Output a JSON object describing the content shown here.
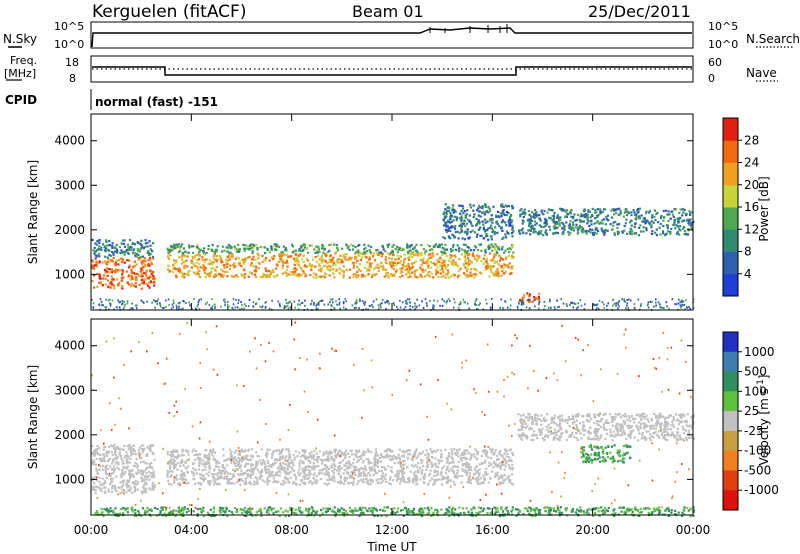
{
  "header": {
    "station": "Kerguelen (fitACF)",
    "beam": "Beam 01",
    "date": "25/Dec/2011"
  },
  "top_panels": {
    "nsky_label": "N.Sky",
    "nsky_ticks": [
      "10^5",
      "10^0"
    ],
    "nsearch_label": "N.Search",
    "nsearch_ticks": [
      "10^5",
      "10^0"
    ],
    "freq_label_1": "Freq.",
    "freq_label_2": "[MHz]",
    "freq_ticks": [
      "18",
      "8"
    ],
    "nave_label": "Nave",
    "nave_ticks": [
      "60",
      "0"
    ],
    "cpid_label": "CPID",
    "cpid_text": "normal (fast) -151"
  },
  "colors": {
    "power_scale": [
      "#1f3fd8",
      "#2f5fb0",
      "#2f8a70",
      "#4fa84f",
      "#c8d23a",
      "#f0a020",
      "#f06a10",
      "#e02010"
    ],
    "velocity_scale": [
      "#2030c0",
      "#3f7fb0",
      "#2f8f5f",
      "#60c040",
      "#c0c0c0",
      "#c8a040",
      "#f08020",
      "#e04010",
      "#e01010"
    ],
    "gray_scatter": "#c0c0c0"
  },
  "chart_data": [
    {
      "type": "heatmap",
      "name": "power",
      "ylabel": "Slant Range [km]",
      "yticks": [
        "1000",
        "2000",
        "3000",
        "4000"
      ],
      "ylim": [
        200,
        4600
      ],
      "colorbar_label": "Power [dB]",
      "colorbar_ticks": [
        "4",
        "8",
        "12",
        "16",
        "20",
        "24",
        "28"
      ],
      "colorbar_range": [
        0,
        32
      ],
      "bands": [
        {
          "t": [
            0.0,
            2.5
          ],
          "range": [
            700,
            1400
          ],
          "power": 26
        },
        {
          "t": [
            0.0,
            2.5
          ],
          "range": [
            1400,
            1800
          ],
          "power": 9
        },
        {
          "t": [
            3.0,
            16.8
          ],
          "range": [
            950,
            1500
          ],
          "power": 22
        },
        {
          "t": [
            3.0,
            16.8
          ],
          "range": [
            1500,
            1700
          ],
          "power": 12
        },
        {
          "t": [
            14.0,
            16.8
          ],
          "range": [
            1800,
            2600
          ],
          "power": 8
        },
        {
          "t": [
            17.0,
            24.0
          ],
          "range": [
            1900,
            2500
          ],
          "power": 9
        },
        {
          "t": [
            17.0,
            18.0
          ],
          "range": [
            400,
            600
          ],
          "power": 26
        }
      ]
    },
    {
      "type": "heatmap",
      "name": "velocity",
      "ylabel": "Slant Range [km]",
      "yticks": [
        "1000",
        "2000",
        "3000",
        "4000"
      ],
      "ylim": [
        200,
        4600
      ],
      "colorbar_label": "Velocity [m s^-1]",
      "colorbar_ticks": [
        "1000",
        "500",
        "100",
        "25",
        "-25",
        "-100",
        "-500",
        "-1000"
      ],
      "xlabel": "Time UT",
      "xticks": [
        "00:00",
        "04:00",
        "08:00",
        "12:00",
        "16:00",
        "20:00",
        "00:00"
      ],
      "xlim": [
        0,
        24
      ],
      "bands": [
        {
          "t": [
            0.0,
            2.5
          ],
          "range": [
            700,
            1800
          ],
          "velocity": 0
        },
        {
          "t": [
            3.0,
            16.8
          ],
          "range": [
            900,
            1700
          ],
          "velocity": 0
        },
        {
          "t": [
            17.0,
            24.0
          ],
          "range": [
            1900,
            2500
          ],
          "velocity": 0
        },
        {
          "t": [
            0.0,
            24.0
          ],
          "range": [
            200,
            400
          ],
          "velocity": 150
        },
        {
          "t": [
            19.5,
            21.5
          ],
          "range": [
            1400,
            1800
          ],
          "velocity": 300
        }
      ]
    }
  ]
}
